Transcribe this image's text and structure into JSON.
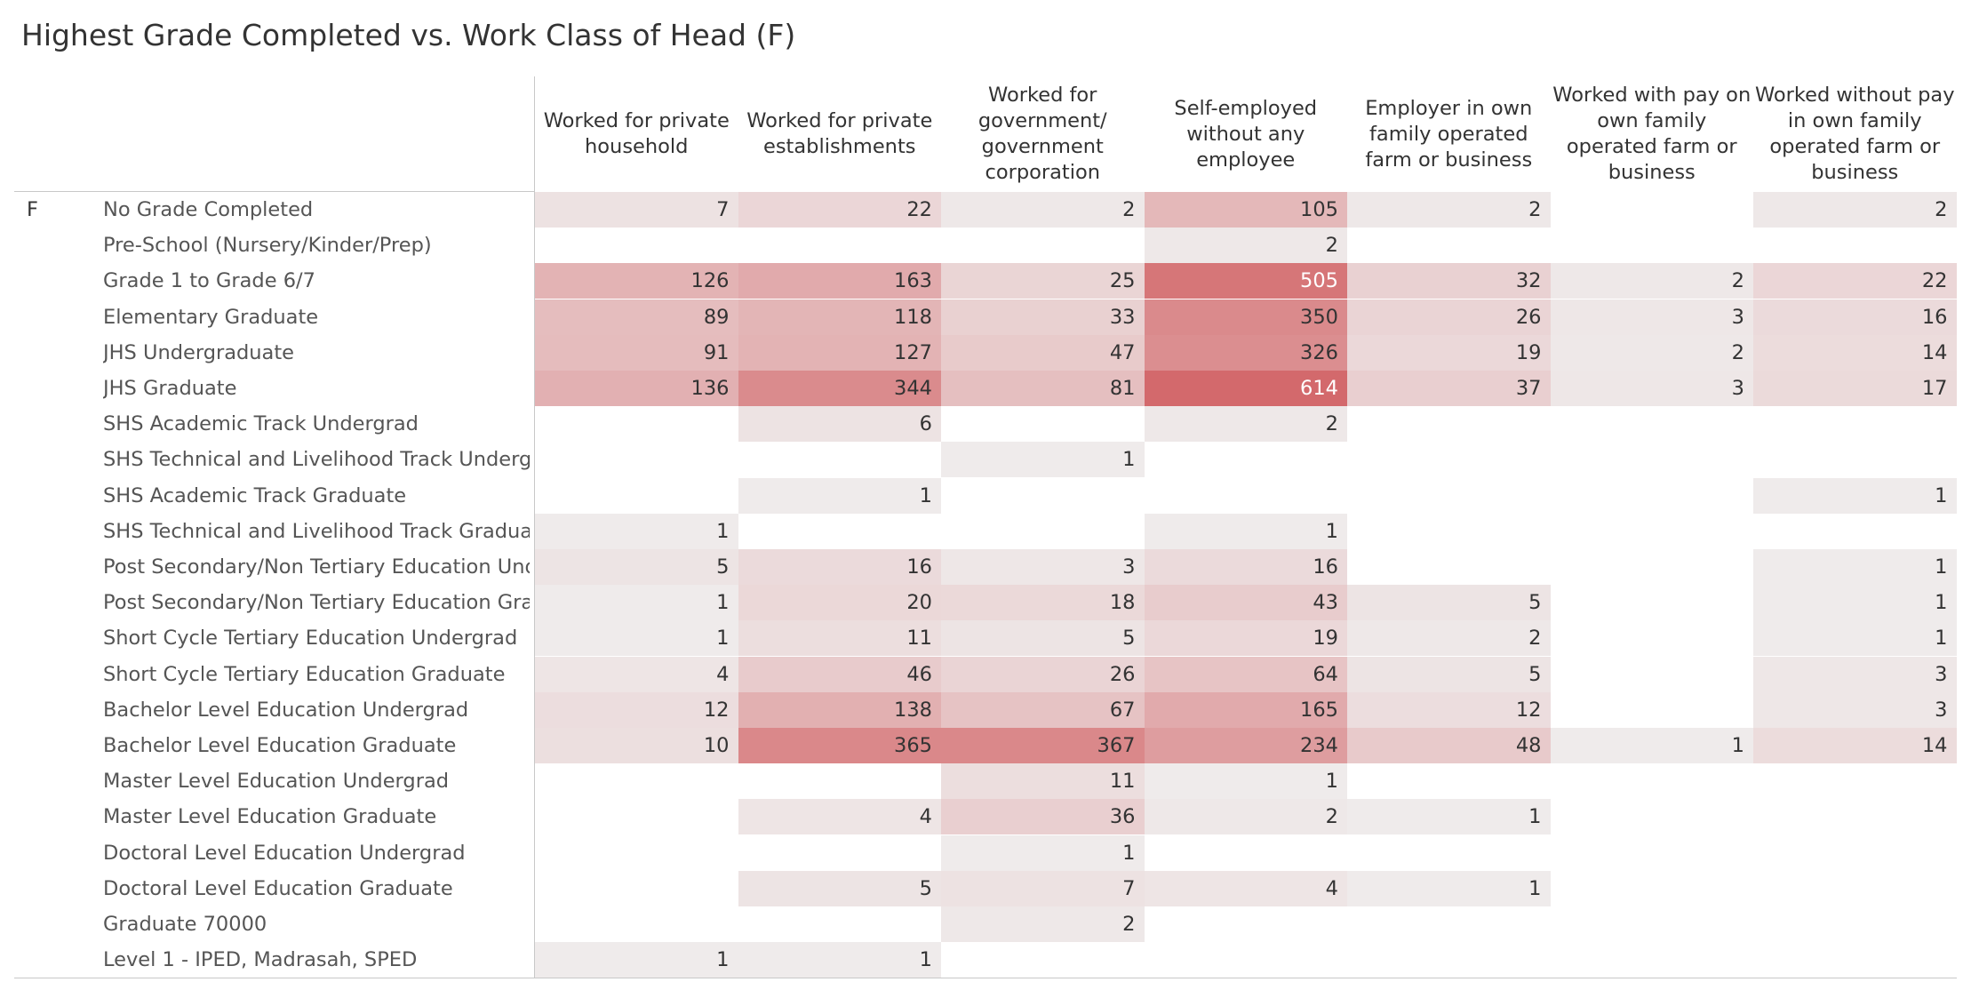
{
  "title": "Highest Grade Completed vs. Work Class of Head (F)",
  "chart_data": {
    "type": "heatmap",
    "title": "Highest Grade Completed vs. Work Class of Head (F)",
    "row_group": "F",
    "columns": [
      "Worked for private household",
      "Worked for private establishments",
      "Worked for government/ government corporation",
      "Self-employed without any employee",
      "Employer in own family operated farm or business",
      "Worked with pay on own family operated farm or business",
      "Worked without pay in own family operated farm or business"
    ],
    "rows": [
      "No Grade Completed",
      "Pre-School (Nursery/Kinder/Prep)",
      "Grade 1 to Grade 6/7",
      "Elementary Graduate",
      "JHS Undergraduate",
      "JHS Graduate",
      "SHS Academic Track Undergrad",
      "SHS Technical and Livelihood Track Undergrad",
      "SHS Academic Track Graduate",
      "SHS Technical and Livelihood Track Graduate",
      "Post Secondary/Non Tertiary Education Unde..",
      "Post Secondary/Non Tertiary Education Grad..",
      "Short Cycle Tertiary Education Undergrad",
      "Short Cycle Tertiary Education Graduate",
      "Bachelor Level Education Undergrad",
      "Bachelor Level Education Graduate",
      "Master Level Education Undergrad",
      "Master Level Education Graduate",
      "Doctoral Level Education Undergrad",
      "Doctoral Level Education Graduate",
      "Graduate 70000",
      "Level 1 - IPED, Madrasah, SPED"
    ],
    "values": [
      [
        7,
        22,
        2,
        105,
        2,
        null,
        2
      ],
      [
        null,
        null,
        null,
        2,
        null,
        null,
        null
      ],
      [
        126,
        163,
        25,
        505,
        32,
        2,
        22
      ],
      [
        89,
        118,
        33,
        350,
        26,
        3,
        16
      ],
      [
        91,
        127,
        47,
        326,
        19,
        2,
        14
      ],
      [
        136,
        344,
        81,
        614,
        37,
        3,
        17
      ],
      [
        null,
        6,
        null,
        2,
        null,
        null,
        null
      ],
      [
        null,
        null,
        1,
        null,
        null,
        null,
        null
      ],
      [
        null,
        1,
        null,
        null,
        null,
        null,
        1
      ],
      [
        1,
        null,
        null,
        1,
        null,
        null,
        null
      ],
      [
        5,
        16,
        3,
        16,
        null,
        null,
        1
      ],
      [
        1,
        20,
        18,
        43,
        5,
        null,
        1
      ],
      [
        1,
        11,
        5,
        19,
        2,
        null,
        1
      ],
      [
        4,
        46,
        26,
        64,
        5,
        null,
        3
      ],
      [
        12,
        138,
        67,
        165,
        12,
        null,
        3
      ],
      [
        10,
        365,
        367,
        234,
        48,
        1,
        14
      ],
      [
        null,
        null,
        11,
        1,
        null,
        null,
        null
      ],
      [
        null,
        4,
        36,
        2,
        1,
        null,
        null
      ],
      [
        null,
        null,
        1,
        null,
        null,
        null,
        null
      ],
      [
        null,
        5,
        7,
        4,
        1,
        null,
        null
      ],
      [
        null,
        null,
        2,
        null,
        null,
        null,
        null
      ],
      [
        1,
        1,
        null,
        null,
        null,
        null,
        null
      ]
    ],
    "color_scale": {
      "low": "#f0f0f0",
      "high": "#d3696c"
    },
    "band_color": "#f0f0f0"
  }
}
